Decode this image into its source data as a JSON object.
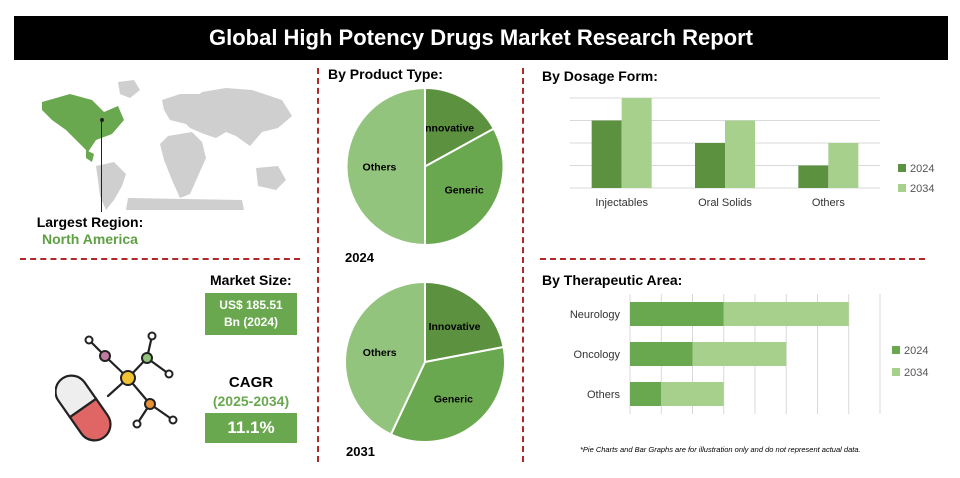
{
  "header": {
    "title": "Global High Potency Drugs Market Research Report"
  },
  "region": {
    "label": "Largest Region:",
    "value": "North America"
  },
  "market": {
    "size_label": "Market Size:",
    "size_value_line1": "US$ 185.51",
    "size_value_line2": "Bn (2024)",
    "cagr_label": "CAGR",
    "cagr_years": "(2025-2034)",
    "cagr_value": "11.1%"
  },
  "colors": {
    "dark_green": "#5c9140",
    "mid_green": "#6aa84f",
    "light_green": "#93c47d",
    "divider_red": "#b02828"
  },
  "footnote": "*Pie Charts and Bar Graphs are for illustration only and do not represent actual data.",
  "chart_data": [
    {
      "type": "pie",
      "title": "By Product Type:",
      "year_label": "2024",
      "slices": [
        {
          "label": "Innovative",
          "value": 17,
          "color": "#5c9140"
        },
        {
          "label": "Generic",
          "value": 33,
          "color": "#6aa84f"
        },
        {
          "label": "Others",
          "value": 50,
          "color": "#93c47d"
        }
      ]
    },
    {
      "type": "pie",
      "title": "",
      "year_label": "2031",
      "slices": [
        {
          "label": "Innovative",
          "value": 22,
          "color": "#5c9140"
        },
        {
          "label": "Generic",
          "value": 35,
          "color": "#6aa84f"
        },
        {
          "label": "Others",
          "value": 43,
          "color": "#93c47d"
        }
      ]
    },
    {
      "type": "bar",
      "title": "By  Dosage Form:",
      "categories": [
        "Injectables",
        "Oral Solids",
        "Others"
      ],
      "series": [
        {
          "name": "2024",
          "values": [
            3,
            2,
            1
          ],
          "color": "#5c9140"
        },
        {
          "name": "2034",
          "values": [
            4,
            3,
            2
          ],
          "color": "#a8d08d"
        }
      ],
      "ylim": [
        0,
        4
      ],
      "grid": true,
      "legend": "right"
    },
    {
      "type": "bar",
      "orientation": "horizontal",
      "stacked": true,
      "title": "By Therapeutic Area:",
      "categories": [
        "Neurology",
        "Oncology",
        "Others"
      ],
      "series": [
        {
          "name": "2024",
          "values": [
            3,
            2,
            1
          ],
          "color": "#6aa84f"
        },
        {
          "name": "2034",
          "values": [
            4,
            3,
            2
          ],
          "color": "#a8d08d"
        }
      ],
      "xlim": [
        0,
        8
      ],
      "grid": true,
      "legend": "right"
    }
  ]
}
